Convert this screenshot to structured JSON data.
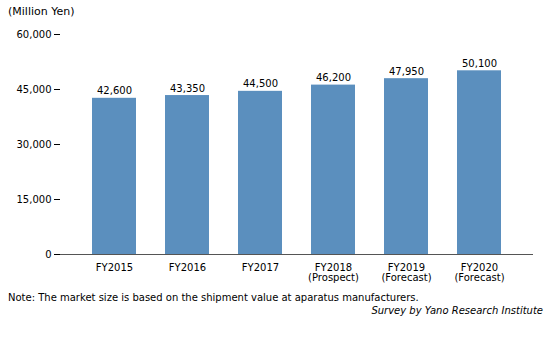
{
  "chart_data": {
    "type": "bar",
    "categories": [
      "FY2015",
      "FY2016",
      "FY2017",
      "FY2018\n(Prospect)",
      "FY2019\n(Forecast)",
      "FY2020\n(Forecast)"
    ],
    "values": [
      42600,
      43350,
      44500,
      46200,
      47950,
      50100
    ],
    "value_labels": [
      "42,600",
      "43,350",
      "44,500",
      "46,200",
      "47,950",
      "50,100"
    ],
    "data_labels": true,
    "color": "#5b8fbe",
    "ylabel": "(Million Yen)",
    "ylim": [
      0,
      60000
    ],
    "yticks": [
      0,
      {
        "value": 15000,
        "label": "15,000"
      },
      {
        "value": 30000,
        "label": "30,000"
      },
      {
        "value": 45000,
        "label": "45,000"
      },
      {
        "value": 60000,
        "label": "60,000"
      }
    ],
    "grid": false,
    "annotations": [
      "Note: The market size is based on the shipment value at aparatus manufacturers.",
      "Survey by Yano Research Institute"
    ]
  }
}
